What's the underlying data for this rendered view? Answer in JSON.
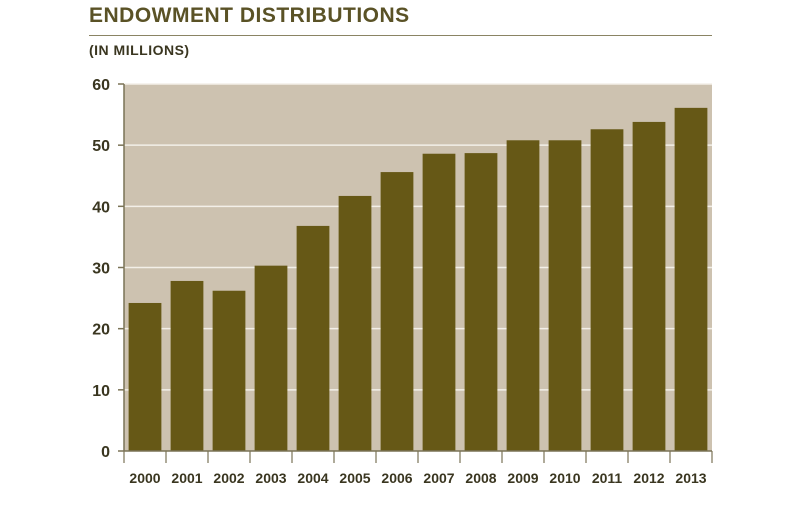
{
  "chart_data": {
    "type": "bar",
    "title": "ENDOWMENT DISTRIBUTIONS",
    "subtitle": "(IN MILLIONS)",
    "categories": [
      "2000",
      "2001",
      "2002",
      "2003",
      "2004",
      "2005",
      "2006",
      "2007",
      "2008",
      "2009",
      "2010",
      "2011",
      "2012",
      "2013"
    ],
    "values": [
      24.2,
      27.8,
      26.2,
      30.3,
      36.8,
      41.7,
      45.6,
      48.6,
      48.7,
      50.8,
      50.8,
      52.6,
      53.8,
      56.1
    ],
    "ylim": [
      0,
      60
    ],
    "yticks": [
      "0",
      "10",
      "20",
      "30",
      "40",
      "50",
      "60"
    ],
    "grid": true,
    "xlabel": "",
    "ylabel": "",
    "colors": {
      "bar": "#665816",
      "plot_bg": "#cdc2b0",
      "grid": "#f3efe8",
      "axis": "#7a7356",
      "title": "#5a5226"
    }
  }
}
